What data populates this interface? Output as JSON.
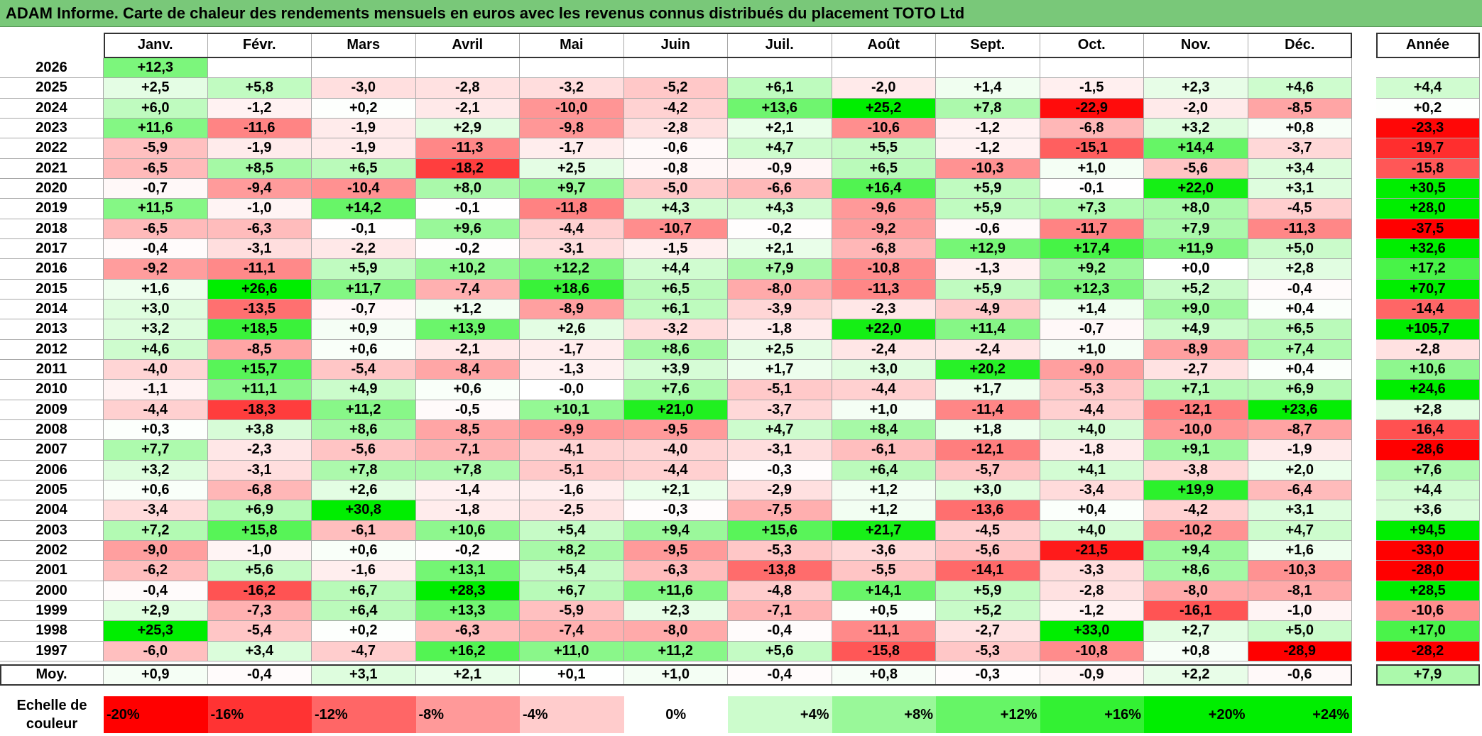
{
  "title": "ADAM Informe. Carte de chaleur des rendements mensuels en euros avec les revenus connus distribués du placement TOTO Ltd",
  "chart_data": {
    "type": "heatmap",
    "months": [
      "Janv.",
      "Févr.",
      "Mars",
      "Avril",
      "Mai",
      "Juin",
      "Juil.",
      "Août",
      "Sept.",
      "Oct.",
      "Nov.",
      "Déc."
    ],
    "annual_header": "Année",
    "rows": [
      {
        "year": "2026",
        "values": [
          "+12,3",
          "",
          "",
          "",
          "",
          "",
          "",
          "",
          "",
          "",
          "",
          ""
        ],
        "annual": ""
      },
      {
        "year": "2025",
        "values": [
          "+2,5",
          "+5,8",
          "-3,0",
          "-2,8",
          "-3,2",
          "-5,2",
          "+6,1",
          "-2,0",
          "+1,4",
          "-1,5",
          "+2,3",
          "+4,6"
        ],
        "annual": "+4,4"
      },
      {
        "year": "2024",
        "values": [
          "+6,0",
          "-1,2",
          "+0,2",
          "-2,1",
          "-10,0",
          "-4,2",
          "+13,6",
          "+25,2",
          "+7,8",
          "-22,9",
          "-2,0",
          "-8,5"
        ],
        "annual": "+0,2"
      },
      {
        "year": "2023",
        "values": [
          "+11,6",
          "-11,6",
          "-1,9",
          "+2,9",
          "-9,8",
          "-2,8",
          "+2,1",
          "-10,6",
          "-1,2",
          "-6,8",
          "+3,2",
          "+0,8"
        ],
        "annual": "-23,3"
      },
      {
        "year": "2022",
        "values": [
          "-5,9",
          "-1,9",
          "-1,9",
          "-11,3",
          "-1,7",
          "-0,6",
          "+4,7",
          "+5,5",
          "-1,2",
          "-15,1",
          "+14,4",
          "-3,7"
        ],
        "annual": "-19,7"
      },
      {
        "year": "2021",
        "values": [
          "-6,5",
          "+8,5",
          "+6,5",
          "-18,2",
          "+2,5",
          "-0,8",
          "-0,9",
          "+6,5",
          "-10,3",
          "+1,0",
          "-5,6",
          "+3,4"
        ],
        "annual": "-15,8"
      },
      {
        "year": "2020",
        "values": [
          "-0,7",
          "-9,4",
          "-10,4",
          "+8,0",
          "+9,7",
          "-5,0",
          "-6,6",
          "+16,4",
          "+5,9",
          "-0,1",
          "+22,0",
          "+3,1"
        ],
        "annual": "+30,5"
      },
      {
        "year": "2019",
        "values": [
          "+11,5",
          "-1,0",
          "+14,2",
          "-0,1",
          "-11,8",
          "+4,3",
          "+4,3",
          "-9,6",
          "+5,9",
          "+7,3",
          "+8,0",
          "-4,5"
        ],
        "annual": "+28,0"
      },
      {
        "year": "2018",
        "values": [
          "-6,5",
          "-6,3",
          "-0,1",
          "+9,6",
          "-4,4",
          "-10,7",
          "-0,2",
          "-9,2",
          "-0,6",
          "-11,7",
          "+7,9",
          "-11,3"
        ],
        "annual": "-37,5"
      },
      {
        "year": "2017",
        "values": [
          "-0,4",
          "-3,1",
          "-2,2",
          "-0,2",
          "-3,1",
          "-1,5",
          "+2,1",
          "-6,8",
          "+12,9",
          "+17,4",
          "+11,9",
          "+5,0"
        ],
        "annual": "+32,6"
      },
      {
        "year": "2016",
        "values": [
          "-9,2",
          "-11,1",
          "+5,9",
          "+10,2",
          "+12,2",
          "+4,4",
          "+7,9",
          "-10,8",
          "-1,3",
          "+9,2",
          "+0,0",
          "+2,8"
        ],
        "annual": "+17,2"
      },
      {
        "year": "2015",
        "values": [
          "+1,6",
          "+26,6",
          "+11,7",
          "-7,4",
          "+18,6",
          "+6,5",
          "-8,0",
          "-11,3",
          "+5,9",
          "+12,3",
          "+5,2",
          "-0,4"
        ],
        "annual": "+70,7"
      },
      {
        "year": "2014",
        "values": [
          "+3,0",
          "-13,5",
          "-0,7",
          "+1,2",
          "-8,9",
          "+6,1",
          "-3,9",
          "-2,3",
          "-4,9",
          "+1,4",
          "+9,0",
          "+0,4"
        ],
        "annual": "-14,4"
      },
      {
        "year": "2013",
        "values": [
          "+3,2",
          "+18,5",
          "+0,9",
          "+13,9",
          "+2,6",
          "-3,2",
          "-1,8",
          "+22,0",
          "+11,4",
          "-0,7",
          "+4,9",
          "+6,5"
        ],
        "annual": "+105,7"
      },
      {
        "year": "2012",
        "values": [
          "+4,6",
          "-8,5",
          "+0,6",
          "-2,1",
          "-1,7",
          "+8,6",
          "+2,5",
          "-2,4",
          "-2,4",
          "+1,0",
          "-8,9",
          "+7,4"
        ],
        "annual": "-2,8"
      },
      {
        "year": "2011",
        "values": [
          "-4,0",
          "+15,7",
          "-5,4",
          "-8,4",
          "-1,3",
          "+3,9",
          "+1,7",
          "+3,0",
          "+20,2",
          "-9,0",
          "-2,7",
          "+0,4"
        ],
        "annual": "+10,6"
      },
      {
        "year": "2010",
        "values": [
          "-1,1",
          "+11,1",
          "+4,9",
          "+0,6",
          "-0,0",
          "+7,6",
          "-5,1",
          "-4,4",
          "+1,7",
          "-5,3",
          "+7,1",
          "+6,9"
        ],
        "annual": "+24,6"
      },
      {
        "year": "2009",
        "values": [
          "-4,4",
          "-18,3",
          "+11,2",
          "-0,5",
          "+10,1",
          "+21,0",
          "-3,7",
          "+1,0",
          "-11,4",
          "-4,4",
          "-12,1",
          "+23,6"
        ],
        "annual": "+2,8"
      },
      {
        "year": "2008",
        "values": [
          "+0,3",
          "+3,8",
          "+8,6",
          "-8,5",
          "-9,9",
          "-9,5",
          "+4,7",
          "+8,4",
          "+1,8",
          "+4,0",
          "-10,0",
          "-8,7"
        ],
        "annual": "-16,4"
      },
      {
        "year": "2007",
        "values": [
          "+7,7",
          "-2,3",
          "-5,6",
          "-7,1",
          "-4,1",
          "-4,0",
          "-3,1",
          "-6,1",
          "-12,1",
          "-1,8",
          "+9,1",
          "-1,9"
        ],
        "annual": "-28,6"
      },
      {
        "year": "2006",
        "values": [
          "+3,2",
          "-3,1",
          "+7,8",
          "+7,8",
          "-5,1",
          "-4,4",
          "-0,3",
          "+6,4",
          "-5,7",
          "+4,1",
          "-3,8",
          "+2,0"
        ],
        "annual": "+7,6"
      },
      {
        "year": "2005",
        "values": [
          "+0,6",
          "-6,8",
          "+2,6",
          "-1,4",
          "-1,6",
          "+2,1",
          "-2,9",
          "+1,2",
          "+3,0",
          "-3,4",
          "+19,9",
          "-6,4"
        ],
        "annual": "+4,4"
      },
      {
        "year": "2004",
        "values": [
          "-3,4",
          "+6,9",
          "+30,8",
          "-1,8",
          "-2,5",
          "-0,3",
          "-7,5",
          "+1,2",
          "-13,6",
          "+0,4",
          "-4,2",
          "+3,1"
        ],
        "annual": "+3,6"
      },
      {
        "year": "2003",
        "values": [
          "+7,2",
          "+15,8",
          "-6,1",
          "+10,6",
          "+5,4",
          "+9,4",
          "+15,6",
          "+21,7",
          "-4,5",
          "+4,0",
          "-10,2",
          "+4,7"
        ],
        "annual": "+94,5"
      },
      {
        "year": "2002",
        "values": [
          "-9,0",
          "-1,0",
          "+0,6",
          "-0,2",
          "+8,2",
          "-9,5",
          "-5,3",
          "-3,6",
          "-5,6",
          "-21,5",
          "+9,4",
          "+1,6"
        ],
        "annual": "-33,0"
      },
      {
        "year": "2001",
        "values": [
          "-6,2",
          "+5,6",
          "-1,6",
          "+13,1",
          "+5,4",
          "-6,3",
          "-13,8",
          "-5,5",
          "-14,1",
          "-3,3",
          "+8,6",
          "-10,3"
        ],
        "annual": "-28,0"
      },
      {
        "year": "2000",
        "values": [
          "-0,4",
          "-16,2",
          "+6,7",
          "+28,3",
          "+6,7",
          "+11,6",
          "-4,8",
          "+14,1",
          "+5,9",
          "-2,8",
          "-8,0",
          "-8,1"
        ],
        "annual": "+28,5"
      },
      {
        "year": "1999",
        "values": [
          "+2,9",
          "-7,3",
          "+6,4",
          "+13,3",
          "-5,9",
          "+2,3",
          "-7,1",
          "+0,5",
          "+5,2",
          "-1,2",
          "-16,1",
          "-1,0"
        ],
        "annual": "-10,6"
      },
      {
        "year": "1998",
        "values": [
          "+25,3",
          "-5,4",
          "+0,2",
          "-6,3",
          "-7,4",
          "-8,0",
          "-0,4",
          "-11,1",
          "-2,7",
          "+33,0",
          "+2,7",
          "+5,0"
        ],
        "annual": "+17,0"
      },
      {
        "year": "1997",
        "values": [
          "-6,0",
          "+3,4",
          "-4,7",
          "+16,2",
          "+11,0",
          "+11,2",
          "+5,6",
          "-15,8",
          "-5,3",
          "-10,8",
          "+0,8",
          "-28,9"
        ],
        "annual": "-28,2"
      }
    ],
    "average": {
      "label": "Moy.",
      "values": [
        "+0,9",
        "-0,4",
        "+3,1",
        "+2,1",
        "+0,1",
        "+1,0",
        "-0,4",
        "+0,8",
        "-0,3",
        "-0,9",
        "+2,2",
        "-0,6"
      ],
      "annual": "+7,9"
    },
    "color_scale": {
      "label": "Echelle de couleur",
      "stops": [
        "-20%",
        "-16%",
        "-12%",
        "-8%",
        "-4%",
        "0%",
        "+4%",
        "+8%",
        "+12%",
        "+16%",
        "+20%",
        "+24%"
      ],
      "negative_color": "#ff0000",
      "neutral_color": "#ffffff",
      "positive_color": "#00ee00"
    }
  }
}
